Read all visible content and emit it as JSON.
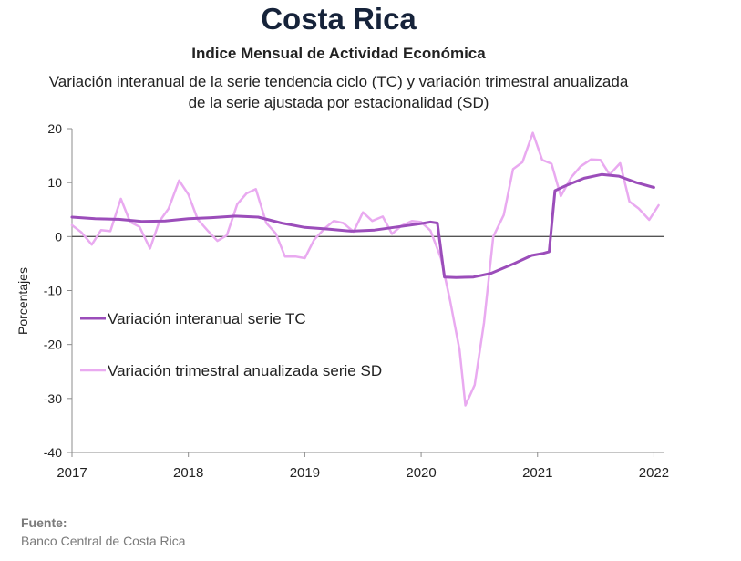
{
  "header": {
    "title": "Costa Rica",
    "subtitle": "Indice Mensual de  Actividad Económica",
    "description_line1": "Variación interanual de la serie tendencia ciclo (TC) y variación trimestral anualizada",
    "description_line2": "de la serie ajustada por estacionalidad (SD)"
  },
  "source": {
    "label": "Fuente:",
    "text": "Banco Central de Costa Rica"
  },
  "chart_data": {
    "type": "line",
    "title": "",
    "xlabel": "",
    "ylabel": "Porcentajes",
    "xlim": [
      2017,
      2022.02
    ],
    "ylim": [
      -40,
      20
    ],
    "x_ticks": [
      "2017",
      "2018",
      "2019",
      "2020",
      "2021",
      "2022"
    ],
    "y_ticks": [
      "20",
      "10",
      "0",
      "-10",
      "-20",
      "-30",
      "-40"
    ],
    "grid": false,
    "legend_position": "left-center",
    "series": [
      {
        "name": "Variación interanual serie TC",
        "color": "#9b4dba",
        "points": [
          [
            2017.0,
            3.6
          ],
          [
            2017.2,
            3.3
          ],
          [
            2017.4,
            3.2
          ],
          [
            2017.6,
            2.8
          ],
          [
            2017.8,
            2.9
          ],
          [
            2018.0,
            3.3
          ],
          [
            2018.2,
            3.5
          ],
          [
            2018.4,
            3.8
          ],
          [
            2018.6,
            3.6
          ],
          [
            2018.8,
            2.5
          ],
          [
            2019.0,
            1.7
          ],
          [
            2019.2,
            1.4
          ],
          [
            2019.4,
            1.0
          ],
          [
            2019.6,
            1.2
          ],
          [
            2019.8,
            1.8
          ],
          [
            2020.0,
            2.4
          ],
          [
            2020.08,
            2.7
          ],
          [
            2020.14,
            2.5
          ],
          [
            2020.2,
            -7.5
          ],
          [
            2020.3,
            -7.6
          ],
          [
            2020.45,
            -7.5
          ],
          [
            2020.6,
            -6.8
          ],
          [
            2020.8,
            -5.0
          ],
          [
            2020.95,
            -3.5
          ],
          [
            2021.05,
            -3.1
          ],
          [
            2021.1,
            -2.8
          ],
          [
            2021.15,
            8.5
          ],
          [
            2021.25,
            9.5
          ],
          [
            2021.4,
            10.8
          ],
          [
            2021.55,
            11.5
          ],
          [
            2021.7,
            11.2
          ],
          [
            2021.85,
            10.0
          ],
          [
            2022.0,
            9.1
          ]
        ]
      },
      {
        "name": "Variación trimestral anualizada serie SD",
        "color": "#e9aaf0",
        "points": [
          [
            2017.0,
            2.1
          ],
          [
            2017.08,
            0.8
          ],
          [
            2017.17,
            -1.5
          ],
          [
            2017.25,
            1.2
          ],
          [
            2017.33,
            1.0
          ],
          [
            2017.42,
            7.0
          ],
          [
            2017.5,
            2.7
          ],
          [
            2017.58,
            1.8
          ],
          [
            2017.67,
            -2.2
          ],
          [
            2017.75,
            2.8
          ],
          [
            2017.83,
            5.2
          ],
          [
            2017.92,
            10.4
          ],
          [
            2018.0,
            7.8
          ],
          [
            2018.08,
            3.2
          ],
          [
            2018.17,
            1.0
          ],
          [
            2018.25,
            -0.8
          ],
          [
            2018.33,
            0.2
          ],
          [
            2018.42,
            6.0
          ],
          [
            2018.5,
            8.0
          ],
          [
            2018.58,
            8.8
          ],
          [
            2018.67,
            2.5
          ],
          [
            2018.75,
            0.6
          ],
          [
            2018.83,
            -3.7
          ],
          [
            2018.92,
            -3.7
          ],
          [
            2019.0,
            -4.0
          ],
          [
            2019.08,
            -0.6
          ],
          [
            2019.17,
            1.5
          ],
          [
            2019.25,
            2.9
          ],
          [
            2019.33,
            2.5
          ],
          [
            2019.42,
            0.9
          ],
          [
            2019.5,
            4.5
          ],
          [
            2019.58,
            2.9
          ],
          [
            2019.67,
            3.7
          ],
          [
            2019.75,
            0.5
          ],
          [
            2019.83,
            2.0
          ],
          [
            2019.92,
            2.9
          ],
          [
            2020.0,
            2.7
          ],
          [
            2020.08,
            1.1
          ],
          [
            2020.17,
            -4.0
          ],
          [
            2020.25,
            -12.0
          ],
          [
            2020.33,
            -21.0
          ],
          [
            2020.38,
            -31.3
          ],
          [
            2020.46,
            -27.5
          ],
          [
            2020.54,
            -16.0
          ],
          [
            2020.62,
            0.0
          ],
          [
            2020.71,
            4.0
          ],
          [
            2020.79,
            12.5
          ],
          [
            2020.87,
            13.8
          ],
          [
            2020.96,
            19.2
          ],
          [
            2021.04,
            14.2
          ],
          [
            2021.12,
            13.5
          ],
          [
            2021.2,
            7.5
          ],
          [
            2021.29,
            11.0
          ],
          [
            2021.37,
            13.0
          ],
          [
            2021.46,
            14.3
          ],
          [
            2021.54,
            14.2
          ],
          [
            2021.62,
            11.5
          ],
          [
            2021.71,
            13.6
          ],
          [
            2021.79,
            6.5
          ],
          [
            2021.87,
            5.2
          ],
          [
            2021.96,
            3.1
          ],
          [
            2022.04,
            5.8
          ]
        ]
      }
    ]
  }
}
